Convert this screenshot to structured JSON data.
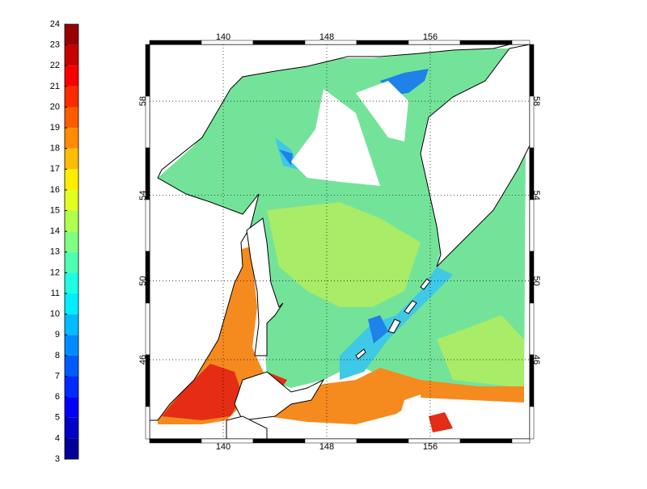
{
  "colorbar": {
    "ticks": [
      3,
      4,
      5,
      6,
      7,
      8,
      9,
      10,
      11,
      12,
      13,
      14,
      15,
      16,
      17,
      18,
      19,
      20,
      21,
      22,
      23,
      24
    ]
  },
  "x_axis": {
    "ticks": [
      140,
      148,
      156
    ]
  },
  "y_axis": {
    "ticks": [
      46,
      50,
      54,
      58
    ]
  }
}
